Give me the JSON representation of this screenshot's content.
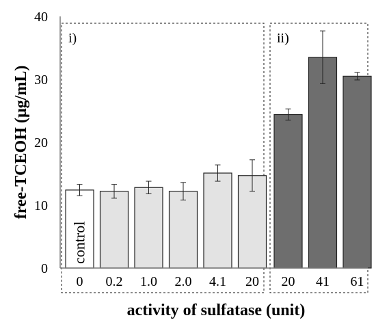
{
  "chart_data": {
    "type": "bar",
    "title": "",
    "xlabel": "activity of sulfatase (unit)",
    "ylabel": "free-TCEOH (µg/mL)",
    "ylim": [
      0,
      40
    ],
    "yticks": [
      "0",
      "10",
      "20",
      "30",
      "40"
    ],
    "categories": [
      "0",
      "0.2",
      "1.0",
      "2.0",
      "4.1",
      "20",
      "20",
      "41",
      "61"
    ],
    "values": [
      12.4,
      12.2,
      12.8,
      12.2,
      15.1,
      14.7,
      24.4,
      33.5,
      30.5
    ],
    "errors": [
      0.9,
      1.1,
      1.0,
      1.4,
      1.3,
      2.5,
      0.9,
      4.2,
      0.6
    ],
    "bar_colors": [
      "#ffffff",
      "#e3e3e3",
      "#e3e3e3",
      "#e3e3e3",
      "#e3e3e3",
      "#e3e3e3",
      "#6e6e6e",
      "#6e6e6e",
      "#6e6e6e"
    ],
    "bar_inner_label": "control",
    "groups": [
      {
        "label": "i)",
        "first": 0,
        "last": 5
      },
      {
        "label": "ii)",
        "first": 6,
        "last": 8
      }
    ],
    "grid": false,
    "legend": "none"
  }
}
